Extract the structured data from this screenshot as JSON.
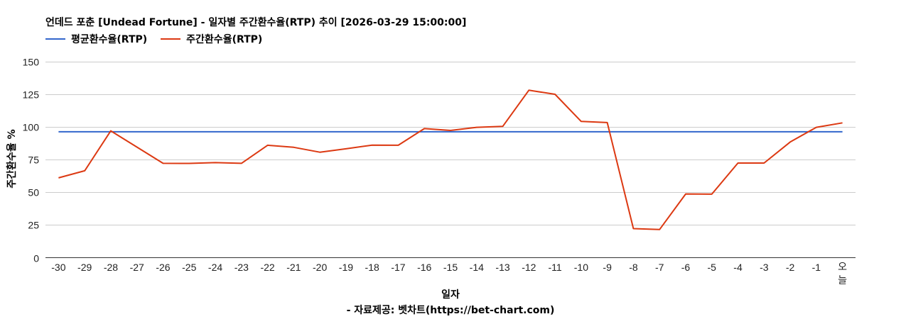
{
  "title": "언데드 포춘 [Undead Fortune] - 일자별 주간환수율(RTP) 추이 [2026-03-29 15:00:00]",
  "legend": [
    {
      "label": "평균환수율(RTP)",
      "color": "#3366cc"
    },
    {
      "label": "주간환수율(RTP)",
      "color": "#dc3912"
    }
  ],
  "axes": {
    "y_title": "주간환수율 %",
    "x_title": "일자"
  },
  "source": "- 자료제공: 벳차트(https://bet-chart.com)",
  "chart_data": {
    "type": "line",
    "title": "언데드 포춘 [Undead Fortune] - 일자별 주간환수율(RTP) 추이 [2026-03-29 15:00:00]",
    "xlabel": "일자",
    "ylabel": "주간환수율 %",
    "ylim": [
      0,
      150
    ],
    "yticks": [
      0,
      25,
      50,
      75,
      100,
      125,
      150
    ],
    "grid": true,
    "legend_position": "top",
    "categories": [
      "-30",
      "-29",
      "-28",
      "-27",
      "-26",
      "-25",
      "-24",
      "-23",
      "-22",
      "-21",
      "-20",
      "-19",
      "-18",
      "-17",
      "-16",
      "-15",
      "-14",
      "-13",
      "-12",
      "-11",
      "-10",
      "-9",
      "-8",
      "-7",
      "-6",
      "-5",
      "-4",
      "-3",
      "-2",
      "-1",
      "오늘"
    ],
    "series": [
      {
        "name": "평균환수율(RTP)",
        "color": "#3366cc",
        "values": [
          96.2,
          96.2,
          96.2,
          96.2,
          96.2,
          96.2,
          96.2,
          96.2,
          96.2,
          96.2,
          96.2,
          96.2,
          96.2,
          96.2,
          96.2,
          96.2,
          96.2,
          96.2,
          96.2,
          96.2,
          96.2,
          96.2,
          96.2,
          96.2,
          96.2,
          96.2,
          96.2,
          96.2,
          96.2,
          96.2,
          96.2
        ]
      },
      {
        "name": "주간환수율(RTP)",
        "color": "#dc3912",
        "values": [
          61.0,
          66.4,
          96.9,
          84.5,
          72.1,
          72.0,
          72.6,
          72.1,
          85.9,
          84.3,
          80.6,
          83.2,
          86.0,
          85.9,
          98.6,
          97.2,
          99.6,
          100.3,
          127.9,
          124.8,
          104.1,
          103.2,
          22.2,
          21.5,
          48.7,
          48.5,
          72.3,
          72.3,
          88.4,
          99.6,
          103.0
        ]
      }
    ]
  }
}
